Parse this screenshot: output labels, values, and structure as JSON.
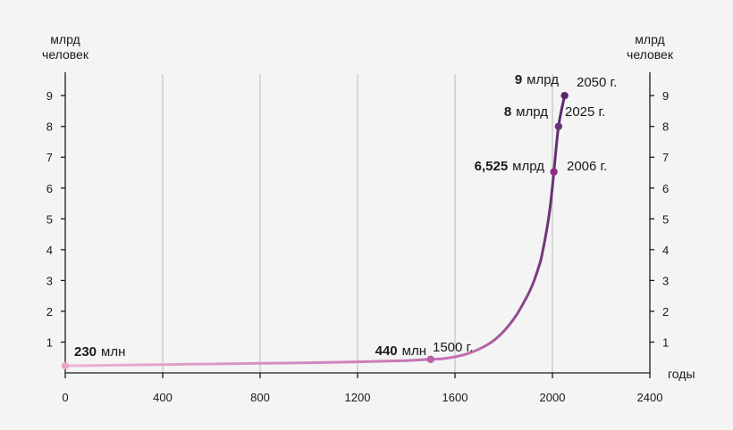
{
  "chart_data": {
    "type": "line",
    "title": "",
    "ylabel_left": [
      "млрд",
      "человек"
    ],
    "ylabel_right": [
      "млрд",
      "человек"
    ],
    "xlabel": "годы",
    "xlim": [
      0,
      2400
    ],
    "ylim": [
      0,
      9.7
    ],
    "x_ticks": [
      "0",
      "400",
      "800",
      "1200",
      "1600",
      "2000",
      "2400"
    ],
    "y_ticks": [
      "1",
      "2",
      "3",
      "4",
      "5",
      "6",
      "7",
      "8",
      "9"
    ],
    "grid": true,
    "series": [
      {
        "color": "#d98fc2",
        "x": [
          0,
          200,
          400,
          600,
          800,
          1000,
          1200,
          1400,
          1500,
          1550,
          1600,
          1650,
          1700,
          1750,
          1800,
          1850,
          1900,
          1925,
          1950,
          1960,
          1970,
          1980,
          1990,
          2000,
          2006,
          2025,
          2050
        ],
        "y": [
          0.23,
          0.25,
          0.27,
          0.29,
          0.31,
          0.33,
          0.36,
          0.4,
          0.44,
          0.46,
          0.52,
          0.62,
          0.78,
          1.0,
          1.35,
          1.85,
          2.55,
          3.0,
          3.6,
          3.95,
          4.35,
          4.8,
          5.35,
          6.05,
          6.525,
          8.0,
          9.0
        ]
      }
    ],
    "points": [
      {
        "x": 0,
        "y": 0.23,
        "value": "230",
        "unit": "млн",
        "year": "",
        "color": "#e9a6cd"
      },
      {
        "x": 1500,
        "y": 0.44,
        "value": "440",
        "unit": "млн",
        "year": "1500 г.",
        "color": "#b862a8"
      },
      {
        "x": 2006,
        "y": 6.525,
        "value": "6,525",
        "unit": "млрд",
        "year": "2006 г.",
        "color": "#8f2a86"
      },
      {
        "x": 2025,
        "y": 8.0,
        "value": "8",
        "unit": "млрд",
        "year": "2025 г.",
        "color": "#6e2f7c"
      },
      {
        "x": 2050,
        "y": 9.0,
        "value": "9",
        "unit": "млрд",
        "year": "2050 г.",
        "color": "#5a2769"
      }
    ],
    "colors": {
      "line_start": "#eeb3d4",
      "line_mid": "#c06aaf",
      "line_end": "#5a2769"
    }
  }
}
